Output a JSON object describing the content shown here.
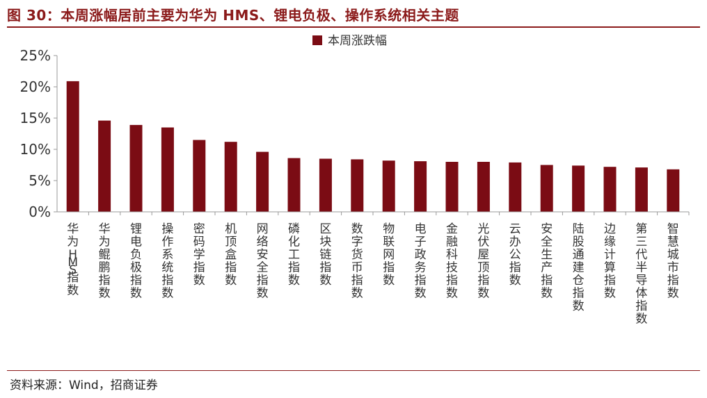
{
  "title": "图 30：本周涨幅居前主要为华为 HMS、锂电负极、操作系统相关主题",
  "source": "资料来源：Wind，招商证券",
  "colors": {
    "bar": "#7B0C14",
    "accent": "#8B1A1A",
    "axis": "#9A9A9A",
    "text": "#333333"
  },
  "chart_data": {
    "type": "bar",
    "categories": [
      "华为HMS指数",
      "华为鲲鹏指数",
      "锂电负极指数",
      "操作系统指数",
      "密码学指数",
      "机顶盒指数",
      "网络安全指数",
      "磷化工指数",
      "区块链指数",
      "数字货币指数",
      "物联网指数",
      "电子政务指数",
      "金融科技指数",
      "光伏屋顶指数",
      "云办公指数",
      "安全生产指数",
      "陆股通建仓指数",
      "边缘计算指数",
      "第三代半导体指数",
      "智慧城市指数"
    ],
    "series": [
      {
        "name": "本周涨跌幅",
        "values": [
          20.9,
          14.6,
          13.9,
          13.5,
          11.5,
          11.2,
          9.6,
          8.6,
          8.5,
          8.4,
          8.2,
          8.1,
          8.0,
          8.0,
          7.9,
          7.5,
          7.4,
          7.2,
          7.1,
          6.8
        ]
      }
    ],
    "ylim": [
      0,
      25
    ],
    "yticks": [
      "0%",
      "5%",
      "10%",
      "15%",
      "20%",
      "25%"
    ],
    "legend": "top-center",
    "grid": false
  }
}
